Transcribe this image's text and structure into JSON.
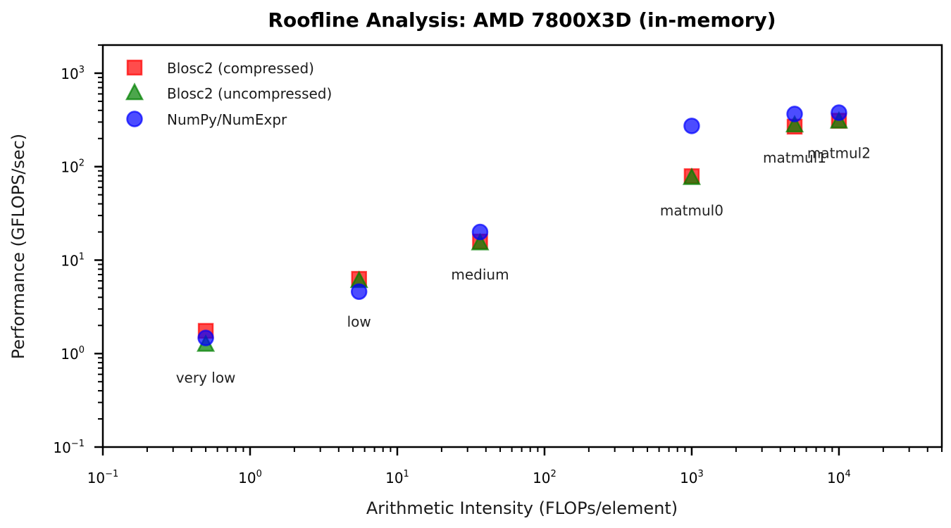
{
  "chart_data": {
    "type": "scatter",
    "title": "Roofline Analysis: AMD 7800X3D (in-memory)",
    "xlabel": "Arithmetic Intensity (FLOPs/element)",
    "ylabel": "Performance (GFLOPS/sec)",
    "xscale": "log",
    "yscale": "log",
    "xlim": [
      0.1,
      50000
    ],
    "ylim": [
      0.1,
      2000
    ],
    "grid": false,
    "legend_position": "upper left",
    "x_tick_labels": [
      {
        "base": "10",
        "exp": "−1",
        "value": 0.1
      },
      {
        "base": "10",
        "exp": "0",
        "value": 1
      },
      {
        "base": "10",
        "exp": "1",
        "value": 10
      },
      {
        "base": "10",
        "exp": "2",
        "value": 100
      },
      {
        "base": "10",
        "exp": "3",
        "value": 1000
      },
      {
        "base": "10",
        "exp": "4",
        "value": 10000
      }
    ],
    "y_tick_labels": [
      {
        "base": "10",
        "exp": "−1",
        "value": 0.1
      },
      {
        "base": "10",
        "exp": "0",
        "value": 1
      },
      {
        "base": "10",
        "exp": "1",
        "value": 10
      },
      {
        "base": "10",
        "exp": "2",
        "value": 100
      },
      {
        "base": "10",
        "exp": "3",
        "value": 1000
      }
    ],
    "categories": [
      "very low",
      "low",
      "medium",
      "matmul0",
      "matmul1",
      "matmul2"
    ],
    "x": [
      0.5,
      5.5,
      36.5,
      1000,
      5000,
      10000
    ],
    "series": [
      {
        "name": "Blosc2 (compressed)",
        "marker": "square",
        "color": "#ff0000",
        "values": [
          1.75,
          6.3,
          15.8,
          79,
          268,
          310
        ]
      },
      {
        "name": "Blosc2 (uncompressed)",
        "marker": "triangle",
        "color": "#008000",
        "values": [
          1.25,
          6.0,
          15.2,
          76,
          278,
          305
        ]
      },
      {
        "name": "NumPy/NumExpr",
        "marker": "circle",
        "color": "#0000ff",
        "values": [
          1.47,
          4.6,
          20.0,
          273,
          366,
          378
        ]
      }
    ],
    "annotations": [
      {
        "text": "very low",
        "x": 0.5,
        "y": 0.55
      },
      {
        "text": "low",
        "x": 5.5,
        "y": 2.2
      },
      {
        "text": "medium",
        "x": 36.5,
        "y": 7.0
      },
      {
        "text": "matmul0",
        "x": 1000,
        "y": 34
      },
      {
        "text": "matmul1",
        "x": 5000,
        "y": 125
      },
      {
        "text": "matmul2",
        "x": 10000,
        "y": 140
      }
    ]
  }
}
